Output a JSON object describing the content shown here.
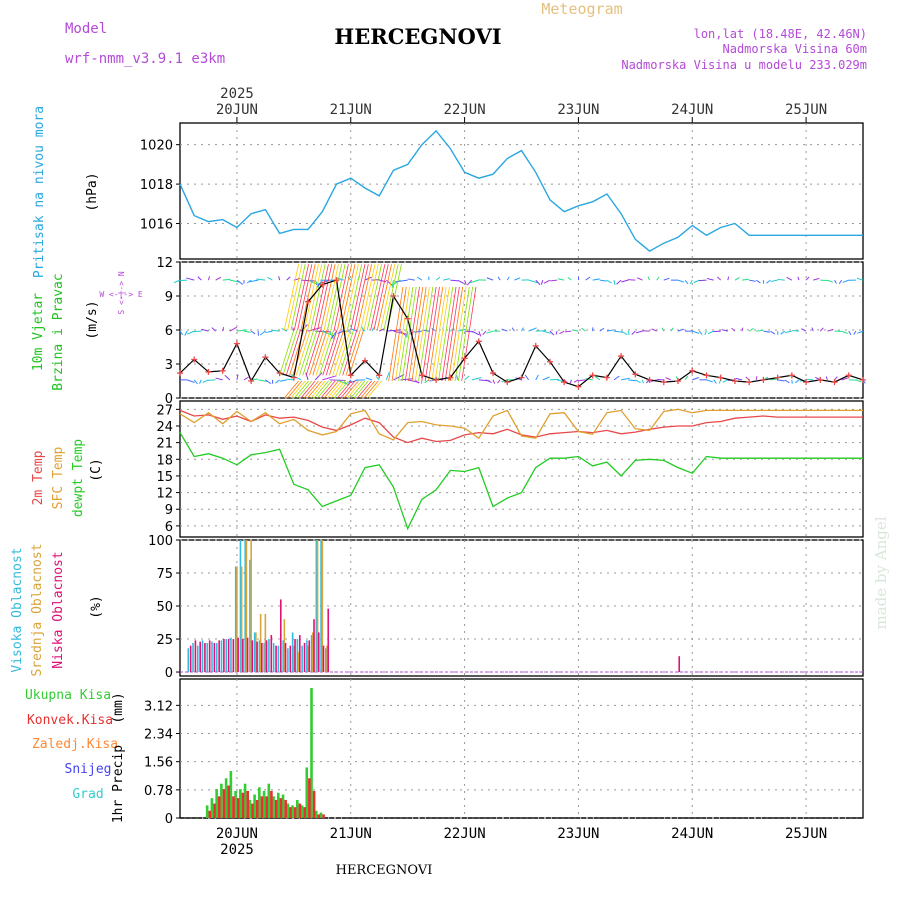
{
  "header": {
    "model_label": "Model",
    "model_name": "wrf-nmm_v3.9.1 e3km",
    "title": "HERCEGNOVI",
    "subtitle": "Meteogram",
    "coords": "lon,lat (18.48E, 42.46N)",
    "elevation": "Nadmorska Visina 60m",
    "model_elevation": "Nadmorska Visina u modelu 233.029m",
    "footer_title": "HERCEGNOVI",
    "watermark": "made by Angel"
  },
  "colors": {
    "pressure": "#2aa7e0",
    "wind_label": "#22c222",
    "temp2m": "#e8484a",
    "sfc_temp": "#e0a030",
    "dewpt": "#22cc22",
    "high_cloud": "#33bbdd",
    "mid_cloud": "#d9a53b",
    "low_cloud": "#dd1177",
    "total_precip": "#33cc33",
    "conv_precip": "#e83030",
    "frozen_precip": "#ff8833",
    "snow": "#4444ee",
    "hail": "#33cccc",
    "meta_purple": "#b44ad8"
  },
  "chart_data": [
    {
      "id": "time_axis",
      "type": "axis",
      "year": "2025",
      "ticks": [
        "20JUN",
        "21JUN",
        "22JUN",
        "23JUN",
        "24JUN",
        "25JUN"
      ],
      "tick_hours": [
        12,
        36,
        60,
        84,
        108,
        132
      ],
      "xlim_hours": [
        0,
        144
      ],
      "bottom_year": "2025"
    },
    {
      "id": "pressure",
      "type": "line",
      "ylabel_name": "Pritisak na nivou mora",
      "ylabel_unit": "(hPa)",
      "yticks": [
        "1016",
        "1018",
        "1020"
      ],
      "ytick_values": [
        1016,
        1018,
        1020
      ],
      "ylim": [
        1014.2,
        1021.1
      ],
      "x": [
        0,
        3,
        6,
        9,
        12,
        15,
        18,
        21,
        24,
        27,
        30,
        33,
        36,
        39,
        42,
        45,
        48,
        51,
        54,
        57,
        60,
        63,
        66,
        69,
        72,
        75,
        78,
        81,
        84,
        87,
        90,
        93,
        96,
        99,
        102,
        105,
        108,
        111,
        114,
        117,
        120,
        123,
        126,
        129,
        132,
        135,
        138,
        141,
        144
      ],
      "values": [
        1018.0,
        1016.4,
        1016.1,
        1016.2,
        1015.8,
        1016.5,
        1016.7,
        1015.5,
        1015.7,
        1015.7,
        1016.6,
        1018.0,
        1018.3,
        1017.8,
        1017.4,
        1018.7,
        1019.0,
        1020.0,
        1020.7,
        1019.8,
        1018.6,
        1018.3,
        1018.5,
        1019.3,
        1019.7,
        1018.6,
        1017.2,
        1016.6,
        1016.9,
        1017.1,
        1017.5,
        1016.5,
        1015.2,
        1014.6,
        1015.0,
        1015.3,
        1015.9,
        1015.4,
        1015.8,
        1016.0,
        1015.4,
        1015.4,
        1015.4,
        1015.4,
        1015.4,
        1015.4,
        1015.4,
        1015.4,
        1015.4
      ]
    },
    {
      "id": "wind",
      "type": "line",
      "ylabel_name": "10m Vjetar",
      "ylabel_name2": "Brzina i Pravac",
      "ylabel_unit": "(m/s)",
      "direction_legend": "W <-|-> E",
      "direction_legend2": "S <-|-> N",
      "yticks": [
        "0",
        "3",
        "6",
        "9",
        "12"
      ],
      "ytick_values": [
        0,
        3,
        6,
        9,
        12
      ],
      "ylim": [
        0,
        12
      ],
      "x": [
        0,
        3,
        6,
        9,
        12,
        15,
        18,
        21,
        24,
        27,
        30,
        33,
        36,
        39,
        42,
        45,
        48,
        51,
        54,
        57,
        60,
        63,
        66,
        69,
        72,
        75,
        78,
        81,
        84,
        87,
        90,
        93,
        96,
        99,
        102,
        105,
        108,
        111,
        114,
        117,
        120,
        123,
        126,
        129,
        132,
        135,
        138,
        141,
        144
      ],
      "values": [
        2.2,
        3.4,
        2.3,
        2.4,
        4.8,
        1.5,
        3.6,
        2.2,
        1.8,
        8.5,
        10.0,
        10.4,
        2.0,
        3.3,
        2.0,
        9.0,
        7.0,
        2.0,
        1.6,
        1.8,
        3.5,
        5.0,
        2.2,
        1.4,
        1.8,
        4.6,
        3.2,
        1.4,
        1.0,
        2.0,
        1.8,
        3.7,
        2.1,
        1.6,
        1.4,
        1.5,
        2.4,
        2.0,
        1.8,
        1.5,
        1.4,
        1.6,
        1.8,
        2.0,
        1.4,
        1.6,
        1.4,
        2.0,
        1.6
      ],
      "arrow_row_levels": [
        1.6,
        5.9,
        10.4
      ]
    },
    {
      "id": "temperature",
      "type": "line",
      "ylabel_names": [
        "2m Temp",
        "SFC Temp",
        "dewpt Temp"
      ],
      "ylabel_unit": "(C)",
      "yticks": [
        "6",
        "9",
        "12",
        "15",
        "18",
        "21",
        "24",
        "27"
      ],
      "ytick_values": [
        6,
        9,
        12,
        15,
        18,
        21,
        24,
        27
      ],
      "ylim": [
        4,
        28.5
      ],
      "x": [
        0,
        3,
        6,
        9,
        12,
        15,
        18,
        21,
        24,
        27,
        30,
        33,
        36,
        39,
        42,
        45,
        48,
        51,
        54,
        57,
        60,
        63,
        66,
        69,
        72,
        75,
        78,
        81,
        84,
        87,
        90,
        93,
        96,
        99,
        102,
        105,
        108,
        111,
        114,
        117,
        120,
        123,
        126,
        129,
        132,
        135,
        138,
        141,
        144
      ],
      "series": [
        {
          "name": "2m Temp",
          "values": [
            26.8,
            25.8,
            26.0,
            25.2,
            25.8,
            24.8,
            26.0,
            25.4,
            25.6,
            25.0,
            23.8,
            23.2,
            24.2,
            25.4,
            24.6,
            22.0,
            21.0,
            21.8,
            21.2,
            21.4,
            22.4,
            22.8,
            22.6,
            23.4,
            22.4,
            22.0,
            22.6,
            22.8,
            23.0,
            22.8,
            23.2,
            22.6,
            22.9,
            23.4,
            23.8,
            24.0,
            24.0,
            24.6,
            24.8,
            25.4,
            25.6,
            25.8,
            25.6,
            25.6,
            25.6,
            25.6,
            25.6,
            25.6,
            25.6
          ]
        },
        {
          "name": "SFC Temp",
          "values": [
            26.2,
            24.6,
            26.4,
            24.4,
            26.6,
            24.8,
            26.4,
            24.4,
            25.2,
            23.2,
            22.4,
            23.0,
            26.2,
            26.8,
            22.6,
            21.5,
            24.6,
            24.8,
            24.2,
            24.0,
            23.6,
            21.8,
            25.8,
            26.8,
            22.2,
            21.8,
            26.2,
            26.4,
            23.0,
            22.5,
            26.4,
            26.8,
            23.5,
            23.2,
            26.6,
            27.0,
            26.4,
            26.8,
            26.8,
            26.8,
            26.8,
            26.8,
            26.8,
            26.8,
            26.8,
            26.8,
            26.8,
            26.8,
            26.8
          ]
        },
        {
          "name": "dewpt Temp",
          "values": [
            22.8,
            18.5,
            19.0,
            18.2,
            17.0,
            18.8,
            19.2,
            19.8,
            13.5,
            12.5,
            9.5,
            10.5,
            11.5,
            16.5,
            17.0,
            13.0,
            5.5,
            10.8,
            12.5,
            16.0,
            15.8,
            16.5,
            9.5,
            11.0,
            12.0,
            16.5,
            18.2,
            18.2,
            18.5,
            16.8,
            17.5,
            15.0,
            17.8,
            18.0,
            17.8,
            16.5,
            15.5,
            18.5,
            18.2,
            18.2,
            18.2,
            18.2,
            18.2,
            18.2,
            18.2,
            18.2,
            18.2,
            18.2,
            18.2
          ]
        }
      ]
    },
    {
      "id": "clouds",
      "type": "bar",
      "ylabel_names": [
        "Visoka Oblacnost",
        "Srednja Oblacnost",
        "Niska Oblacnost"
      ],
      "ylabel_unit": "(%)",
      "yticks": [
        "0",
        "25",
        "50",
        "75",
        "100"
      ],
      "ytick_values": [
        0,
        25,
        50,
        75,
        100
      ],
      "ylim": [
        -3,
        100
      ],
      "x": [
        2,
        3,
        4,
        5,
        6,
        7,
        8,
        9,
        10,
        11,
        12,
        13,
        14,
        15,
        16,
        17,
        18,
        19,
        20,
        21,
        22,
        23,
        24,
        25,
        26,
        27,
        28,
        29,
        30,
        31,
        32,
        33,
        34,
        35,
        36,
        105
      ],
      "series": [
        {
          "name": "Visoka",
          "values": [
            18,
            22,
            20,
            24,
            22,
            23,
            22,
            24,
            25,
            26,
            80,
            100,
            100,
            85,
            30,
            24,
            22,
            25,
            22,
            20,
            24,
            18,
            30,
            25,
            20,
            24,
            28,
            100,
            100,
            18,
            0,
            0,
            0,
            0,
            0,
            0
          ]
        },
        {
          "name": "Srednja",
          "values": [
            0,
            0,
            0,
            0,
            0,
            0,
            0,
            0,
            0,
            0,
            80,
            80,
            100,
            100,
            30,
            44,
            44,
            0,
            0,
            0,
            40,
            0,
            20,
            15,
            0,
            20,
            30,
            100,
            100,
            20,
            0,
            0,
            0,
            0,
            0,
            0
          ]
        },
        {
          "name": "Niska",
          "values": [
            20,
            24,
            23,
            22,
            24,
            22,
            24,
            25,
            25,
            25,
            26,
            25,
            26,
            24,
            23,
            22,
            24,
            28,
            20,
            55,
            22,
            20,
            25,
            28,
            22,
            24,
            40,
            30,
            20,
            48,
            0,
            0,
            0,
            0,
            0,
            12
          ]
        }
      ]
    },
    {
      "id": "precip",
      "type": "bar",
      "legend": [
        "Ukupna Kisa",
        "Konvek.Kisa",
        "Zaledj.Kisa",
        "Snijeg",
        "Grad"
      ],
      "ylabel_name": "1hr Precip",
      "ylabel_unit": "(mm)",
      "yticks": [
        "0",
        "0.78",
        "1.56",
        "2.34",
        "3.12"
      ],
      "ytick_values": [
        0,
        0.78,
        1.56,
        2.34,
        3.12
      ],
      "ylim": [
        0,
        3.85
      ],
      "x": [
        6,
        7,
        8,
        9,
        10,
        11,
        12,
        13,
        14,
        15,
        16,
        17,
        18,
        19,
        20,
        21,
        22,
        23,
        24,
        25,
        26,
        27,
        28,
        29,
        30,
        31,
        32
      ],
      "series": [
        {
          "name": "Ukupna Kisa",
          "values": [
            0.35,
            0.55,
            0.8,
            0.95,
            1.1,
            1.3,
            0.75,
            0.8,
            0.95,
            0.5,
            0.65,
            0.85,
            0.75,
            0.95,
            0.6,
            0.7,
            0.65,
            0.4,
            0.35,
            0.5,
            0.35,
            1.4,
            3.6,
            0.2,
            0.15,
            0.0,
            0.0
          ]
        },
        {
          "name": "Konvek.Kisa",
          "values": [
            0.2,
            0.4,
            0.6,
            0.8,
            0.9,
            0.6,
            0.55,
            0.7,
            0.75,
            0.4,
            0.5,
            0.6,
            0.6,
            0.75,
            0.5,
            0.55,
            0.5,
            0.3,
            0.3,
            0.4,
            0.3,
            1.1,
            0.75,
            0.1,
            0.1,
            0.0,
            0.0
          ]
        }
      ]
    }
  ]
}
